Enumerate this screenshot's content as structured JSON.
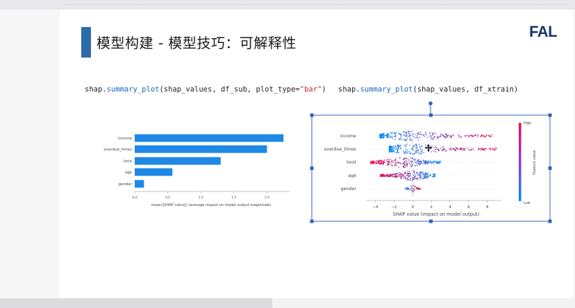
{
  "slide": {
    "title": "模型构建 - 模型技巧：可解释性",
    "logo": "FAL"
  },
  "code": {
    "left": {
      "prefix": "shap.",
      "fn": "summary_plot",
      "args": "(shap_values, df_sub, plot_type=",
      "str": "\"bar\"",
      "close": ")"
    },
    "right": {
      "prefix": "shap.",
      "fn": "summary_plot",
      "args": "(shap_values, df_xtrain)"
    }
  },
  "colors": {
    "bar": "#1e88e5",
    "accent": "#2d6aa8",
    "logo": "#17366b",
    "high": "#ff0051",
    "low": "#008bfb",
    "selection": "#2f65b8"
  },
  "chart_data": [
    {
      "type": "bar",
      "categories": [
        "income",
        "overdue_times",
        "limit",
        "age",
        "gender"
      ],
      "values": [
        2.25,
        2.0,
        1.3,
        0.57,
        0.14
      ],
      "xlabel": "mean(|SHAP value|) (average impact on model output magnitude)",
      "xticks": [
        "0.0",
        "0.5",
        "1.0",
        "1.5",
        "2.0"
      ],
      "xlim": [
        0,
        2.3
      ]
    },
    {
      "type": "scatter",
      "categories": [
        "income",
        "overdue_times",
        "limit",
        "age",
        "gender"
      ],
      "xlabel": "SHAP value (impact on model output)",
      "xticks": [
        "−4",
        "−2",
        "0",
        "2",
        "4",
        "6",
        "8"
      ],
      "xlim": [
        -5,
        9.5
      ],
      "colorbar": {
        "label": "Feature value",
        "high": "High",
        "low": "Low"
      },
      "series": [
        {
          "name": "income",
          "min": -3.5,
          "max": 8.5
        },
        {
          "name": "overdue_times",
          "min": -2.5,
          "max": 9.0
        },
        {
          "name": "limit",
          "min": -4.5,
          "max": 3.0
        },
        {
          "name": "age",
          "min": -3.5,
          "max": 2.5
        },
        {
          "name": "gender",
          "min": -0.8,
          "max": 0.8
        }
      ]
    }
  ]
}
